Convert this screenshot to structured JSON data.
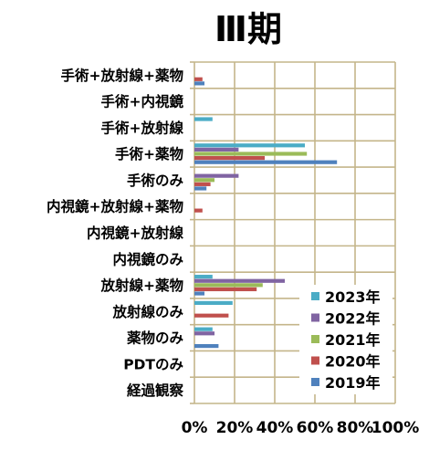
{
  "chart_data": {
    "type": "bar",
    "orientation": "horizontal",
    "title": "Ⅲ期",
    "categories": [
      "手術+放射線+薬物",
      "手術+内視鏡",
      "手術+放射線",
      "手術+薬物",
      "手術のみ",
      "内視鏡+放射線+薬物",
      "内視鏡+放射線",
      "内視鏡のみ",
      "放射線+薬物",
      "放射線のみ",
      "薬物のみ",
      "PDTのみ",
      "経過観察"
    ],
    "series": [
      {
        "name": "2023年",
        "color": "#4bacc6",
        "values": [
          0,
          0,
          9,
          55,
          0,
          0,
          0,
          0,
          9,
          19,
          9,
          0,
          0
        ]
      },
      {
        "name": "2022年",
        "color": "#8064a2",
        "values": [
          0,
          0,
          0,
          22,
          22,
          0,
          0,
          0,
          45,
          0,
          10,
          0,
          0
        ]
      },
      {
        "name": "2021年",
        "color": "#9bbb59",
        "values": [
          0,
          0,
          0,
          56,
          10,
          0,
          0,
          0,
          34,
          0,
          0,
          0,
          0
        ]
      },
      {
        "name": "2020年",
        "color": "#c0504d",
        "values": [
          4,
          0,
          0,
          35,
          8,
          4,
          0,
          0,
          31,
          17,
          0,
          0,
          0
        ]
      },
      {
        "name": "2019年",
        "color": "#4f81bd",
        "values": [
          5,
          0,
          0,
          71,
          6,
          0,
          0,
          0,
          5,
          0,
          12,
          0,
          0
        ]
      }
    ],
    "xlim": [
      0,
      100
    ],
    "xticks": [
      "0%",
      "20%",
      "40%",
      "60%",
      "80%",
      "100%"
    ],
    "grid": true,
    "legend": "bottom-right",
    "colors": {
      "grid": "#c4b58a",
      "axis": "#c4b58a"
    }
  }
}
